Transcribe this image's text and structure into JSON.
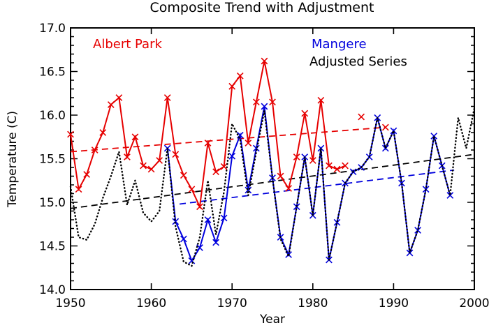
{
  "title": "Composite Trend with Adjustment",
  "axes": {
    "xlabel": "Year",
    "ylabel": "Temperature (C)",
    "x_ticks": [
      1950,
      1960,
      1970,
      1980,
      1990,
      2000
    ],
    "y_ticks": [
      "14.0",
      "14.5",
      "15.0",
      "15.5",
      "16.0",
      "16.5",
      "17.0"
    ],
    "x_range": [
      1950,
      2000
    ],
    "y_range": [
      14.0,
      17.0
    ],
    "y_minor_step": 0.1
  },
  "legend": {
    "albert_park": "Albert Park",
    "mangere": "Mangere",
    "adjusted": "Adjusted Series"
  },
  "colors": {
    "albert_park": "#e60000",
    "mangere": "#0000dd",
    "adjusted": "#000000",
    "axis": "#000000"
  },
  "chart_data": {
    "type": "line",
    "title": "Composite Trend with Adjustment",
    "xlabel": "Year",
    "ylabel": "Temperature (C)",
    "xlim": [
      1950,
      2000
    ],
    "ylim": [
      14.0,
      17.0
    ],
    "grid": false,
    "legend_position": "top-inside",
    "series": [
      {
        "name": "Albert Park",
        "color": "#e60000",
        "style": "solid",
        "marker": "x",
        "points": [
          [
            1950,
            15.78
          ],
          [
            1951,
            15.15
          ],
          [
            1952,
            15.32
          ],
          [
            1953,
            15.6
          ],
          [
            1954,
            15.8
          ],
          [
            1955,
            16.12
          ],
          [
            1956,
            16.2
          ],
          [
            1957,
            15.52
          ],
          [
            1958,
            15.75
          ],
          [
            1959,
            15.42
          ],
          [
            1960,
            15.38
          ],
          [
            1961,
            15.48
          ],
          [
            1962,
            16.2
          ],
          [
            1963,
            15.55
          ],
          [
            1964,
            15.31
          ],
          [
            1965,
            15.15
          ],
          [
            1966,
            14.95
          ],
          [
            1967,
            15.68
          ],
          [
            1968,
            15.35
          ],
          [
            1969,
            15.41
          ],
          [
            1970,
            16.33
          ],
          [
            1971,
            16.45
          ],
          [
            1972,
            15.68
          ],
          [
            1973,
            16.15
          ],
          [
            1974,
            16.62
          ],
          [
            1975,
            16.15
          ],
          [
            1976,
            15.3
          ],
          [
            1977,
            15.16
          ],
          [
            1978,
            15.52
          ],
          [
            1979,
            16.02
          ],
          [
            1980,
            15.48
          ],
          [
            1981,
            16.17
          ],
          [
            1982,
            15.42
          ],
          [
            1983,
            15.38
          ],
          [
            1984,
            15.42
          ]
        ],
        "isolated_points": [
          [
            1986,
            15.98
          ],
          [
            1989,
            15.86
          ]
        ]
      },
      {
        "name": "Mangere",
        "color": "#0000dd",
        "style": "solid",
        "marker": "x",
        "points": [
          [
            1962,
            15.62
          ],
          [
            1963,
            14.78
          ],
          [
            1964,
            14.58
          ],
          [
            1965,
            14.33
          ],
          [
            1966,
            14.48
          ],
          [
            1967,
            14.8
          ],
          [
            1968,
            14.54
          ],
          [
            1969,
            14.82
          ],
          [
            1970,
            15.53
          ],
          [
            1971,
            15.77
          ],
          [
            1972,
            15.14
          ],
          [
            1973,
            15.62
          ],
          [
            1974,
            16.1
          ],
          [
            1975,
            15.28
          ],
          [
            1976,
            14.6
          ],
          [
            1977,
            14.4
          ],
          [
            1978,
            14.95
          ],
          [
            1979,
            15.52
          ],
          [
            1980,
            14.85
          ],
          [
            1981,
            15.62
          ],
          [
            1982,
            14.34
          ],
          [
            1983,
            14.77
          ],
          [
            1984,
            15.22
          ],
          [
            1985,
            15.35
          ],
          [
            1986,
            15.4
          ],
          [
            1987,
            15.52
          ],
          [
            1988,
            15.97
          ],
          [
            1989,
            15.62
          ],
          [
            1990,
            15.82
          ],
          [
            1991,
            15.22
          ],
          [
            1992,
            14.42
          ],
          [
            1993,
            14.68
          ],
          [
            1994,
            15.15
          ],
          [
            1995,
            15.76
          ],
          [
            1996,
            15.42
          ],
          [
            1997,
            15.08
          ]
        ],
        "isolated_points": []
      },
      {
        "name": "Adjusted Series",
        "color": "#000000",
        "style": "dotted",
        "marker": "none",
        "points": [
          [
            1950,
            15.18
          ],
          [
            1951,
            14.6
          ],
          [
            1952,
            14.57
          ],
          [
            1953,
            14.75
          ],
          [
            1954,
            15.05
          ],
          [
            1955,
            15.3
          ],
          [
            1956,
            15.58
          ],
          [
            1957,
            14.97
          ],
          [
            1958,
            15.25
          ],
          [
            1959,
            14.88
          ],
          [
            1960,
            14.78
          ],
          [
            1961,
            14.9
          ],
          [
            1962,
            15.62
          ],
          [
            1963,
            14.72
          ],
          [
            1964,
            14.32
          ],
          [
            1965,
            14.27
          ],
          [
            1966,
            14.6
          ],
          [
            1967,
            15.25
          ],
          [
            1968,
            14.63
          ],
          [
            1969,
            15.12
          ],
          [
            1970,
            15.9
          ],
          [
            1971,
            15.72
          ],
          [
            1972,
            15.08
          ],
          [
            1973,
            15.58
          ],
          [
            1974,
            16.05
          ],
          [
            1975,
            15.28
          ],
          [
            1976,
            14.58
          ],
          [
            1977,
            14.38
          ],
          [
            1978,
            14.95
          ],
          [
            1979,
            15.52
          ],
          [
            1980,
            14.85
          ],
          [
            1981,
            15.62
          ],
          [
            1982,
            14.34
          ],
          [
            1983,
            14.77
          ],
          [
            1984,
            15.22
          ],
          [
            1985,
            15.35
          ],
          [
            1986,
            15.4
          ],
          [
            1987,
            15.52
          ],
          [
            1988,
            15.97
          ],
          [
            1989,
            15.62
          ],
          [
            1990,
            15.82
          ],
          [
            1991,
            15.22
          ],
          [
            1992,
            14.42
          ],
          [
            1993,
            14.68
          ],
          [
            1994,
            15.15
          ],
          [
            1995,
            15.76
          ],
          [
            1996,
            15.42
          ],
          [
            1997,
            15.08
          ],
          [
            1998,
            15.97
          ],
          [
            1999,
            15.62
          ],
          [
            2000,
            16.08
          ]
        ],
        "isolated_points": []
      }
    ],
    "trend_lines": [
      {
        "name": "Albert Park trend",
        "color": "#e60000",
        "from": [
          1950,
          15.58
        ],
        "to": [
          1989,
          15.86
        ]
      },
      {
        "name": "Adjusted trend",
        "color": "#000000",
        "from": [
          1950,
          14.93
        ],
        "to": [
          2000,
          15.55
        ]
      },
      {
        "name": "Mangere trend",
        "color": "#0000dd",
        "from": [
          1963.5,
          14.98
        ],
        "to": [
          1997.5,
          15.37
        ]
      }
    ]
  }
}
